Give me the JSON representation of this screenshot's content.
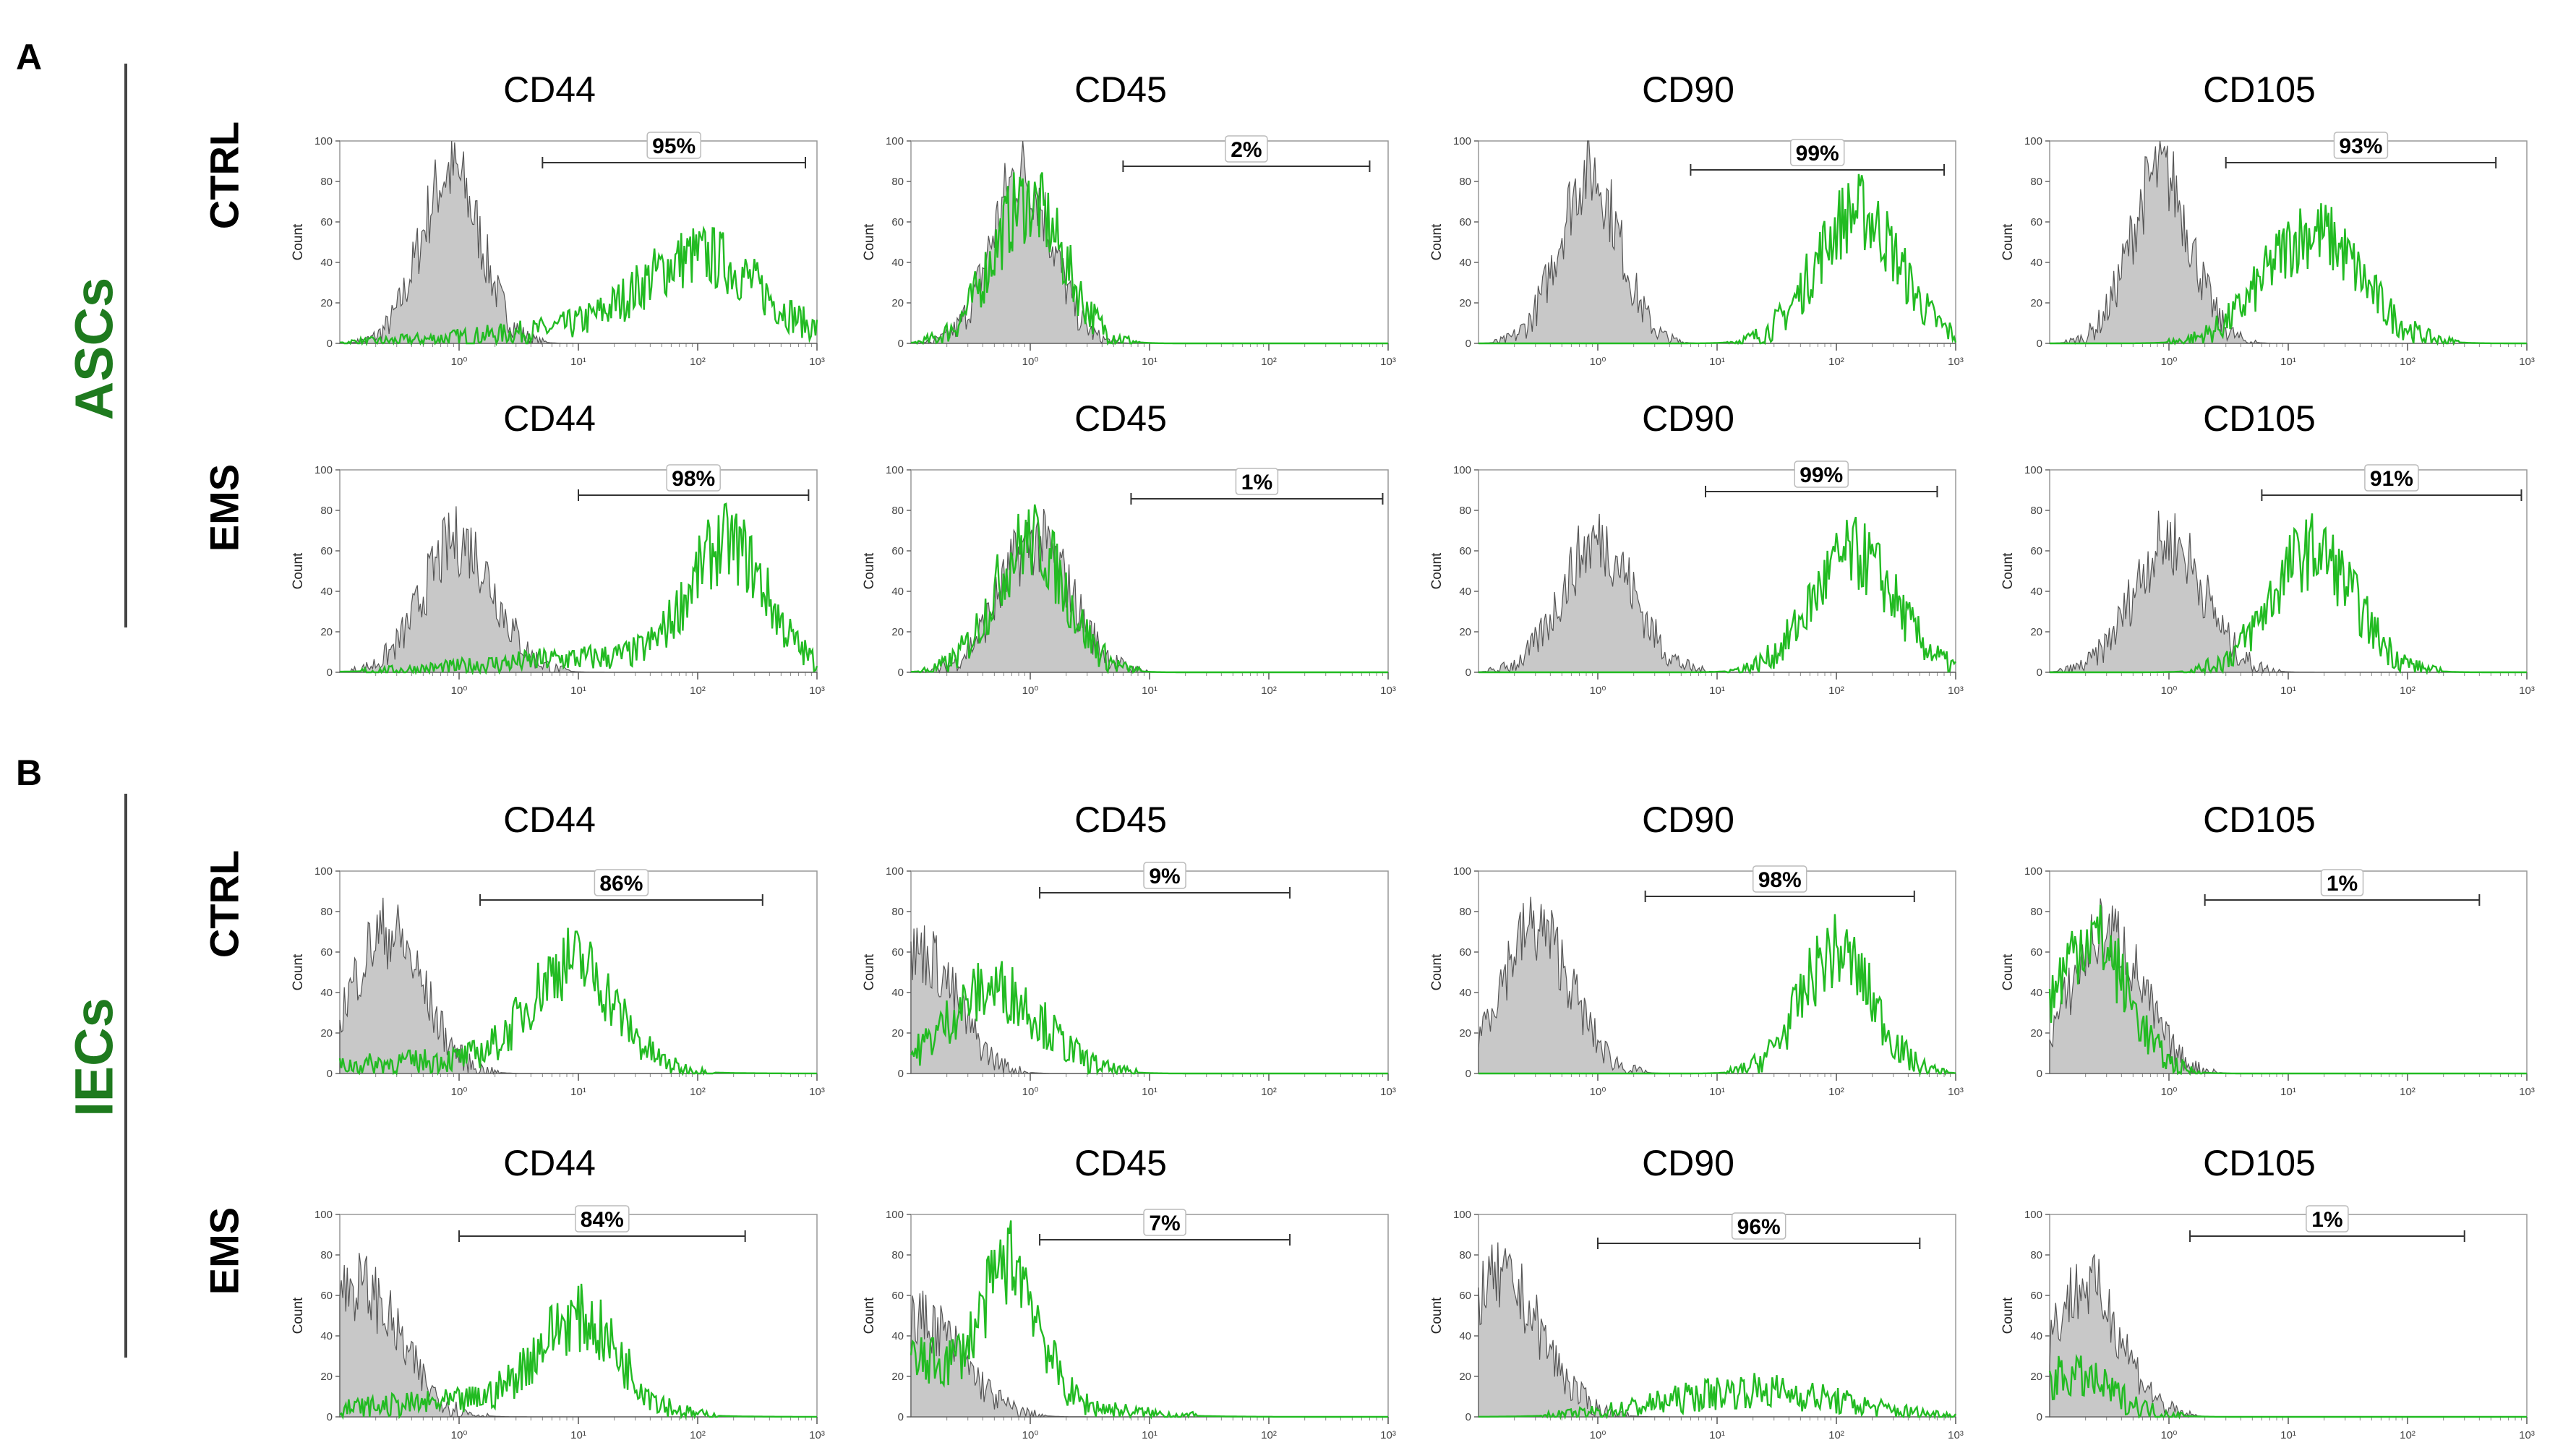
{
  "figure": {
    "panel_letters": [
      "A",
      "B"
    ],
    "groups": [
      {
        "label": "ASCs",
        "color": "#1e7a1e"
      },
      {
        "label": "IECs",
        "color": "#1e7a1e"
      }
    ],
    "row_labels": [
      "CTRL",
      "EMS",
      "CTRL",
      "EMS"
    ],
    "colors": {
      "isotype_fill": "#c8c8c8",
      "isotype_line": "#555555",
      "marker_line": "#22bb22",
      "axis": "#999999"
    }
  },
  "chart_data": {
    "type": "histogram-grid",
    "xscale": "log",
    "xlim": [
      0.1,
      1000
    ],
    "ylim": [
      0,
      100
    ],
    "yticks": [
      "0",
      "20",
      "40",
      "60",
      "80",
      "100"
    ],
    "xticks": [
      "10⁰",
      "10¹",
      "10²",
      "10³"
    ],
    "ylabel": "Count",
    "series_legend": [
      "isotype control (grey filled)",
      "marker (green line)"
    ],
    "panels": [
      {
        "group": "ASCs",
        "row": "CTRL",
        "marker": "CD44",
        "pct": "95%",
        "gate": [
          5,
          800
        ],
        "iso": {
          "peak": 0.85,
          "width": 0.25,
          "height": 85
        },
        "stain": {
          "peak": 110,
          "width": 0.5,
          "height": 40,
          "tail": 0.1
        }
      },
      {
        "group": "ASCs",
        "row": "CTRL",
        "marker": "CD45",
        "pct": "2%",
        "gate": [
          6,
          700
        ],
        "iso": {
          "peak": 0.85,
          "width": 0.25,
          "height": 85
        },
        "stain": {
          "peak": 0.95,
          "width": 0.3,
          "height": 70,
          "tail": 0
        }
      },
      {
        "group": "ASCs",
        "row": "CTRL",
        "marker": "CD90",
        "pct": "99%",
        "gate": [
          6,
          800
        ],
        "iso": {
          "peak": 0.85,
          "width": 0.25,
          "height": 85
        },
        "stain": {
          "peak": 150,
          "width": 0.35,
          "height": 65,
          "tail": 0
        }
      },
      {
        "group": "ASCs",
        "row": "CTRL",
        "marker": "CD105",
        "pct": "93%",
        "gate": [
          3,
          550
        ],
        "iso": {
          "peak": 0.85,
          "width": 0.25,
          "height": 85
        },
        "stain": {
          "peak": 16,
          "width": 0.4,
          "height": 55,
          "tail": 0
        }
      },
      {
        "group": "ASCs",
        "row": "EMS",
        "marker": "CD44",
        "pct": "98%",
        "gate": [
          10,
          850
        ],
        "iso": {
          "peak": 1.0,
          "width": 0.3,
          "height": 65
        },
        "stain": {
          "peak": 180,
          "width": 0.32,
          "height": 60,
          "tail": 0.08
        }
      },
      {
        "group": "ASCs",
        "row": "EMS",
        "marker": "CD45",
        "pct": "1%",
        "gate": [
          7,
          900
        ],
        "iso": {
          "peak": 1.1,
          "width": 0.3,
          "height": 65
        },
        "stain": {
          "peak": 1.0,
          "width": 0.3,
          "height": 65,
          "tail": 0
        }
      },
      {
        "group": "ASCs",
        "row": "EMS",
        "marker": "CD90",
        "pct": "99%",
        "gate": [
          8,
          700
        ],
        "iso": {
          "peak": 1.0,
          "width": 0.3,
          "height": 65
        },
        "stain": {
          "peak": 140,
          "width": 0.35,
          "height": 58,
          "tail": 0
        }
      },
      {
        "group": "ASCs",
        "row": "EMS",
        "marker": "CD105",
        "pct": "91%",
        "gate": [
          6,
          900
        ],
        "iso": {
          "peak": 1.0,
          "width": 0.3,
          "height": 65
        },
        "stain": {
          "peak": 16,
          "width": 0.35,
          "height": 60,
          "tail": 0
        }
      },
      {
        "group": "IECs",
        "row": "CTRL",
        "marker": "CD44",
        "pct": "86%",
        "gate": [
          1.5,
          350
        ],
        "iso": {
          "peak": 0.25,
          "width": 0.3,
          "height": 70
        },
        "stain": {
          "peak": 9,
          "width": 0.35,
          "height": 52,
          "tail": 0.08
        }
      },
      {
        "group": "IECs",
        "row": "CTRL",
        "marker": "CD45",
        "pct": "9%",
        "gate": [
          1.2,
          150
        ],
        "iso": {
          "peak": 0.12,
          "width": 0.3,
          "height": 60
        },
        "stain": {
          "peak": 0.5,
          "width": 0.4,
          "height": 42,
          "tail": 0
        }
      },
      {
        "group": "IECs",
        "row": "CTRL",
        "marker": "CD90",
        "pct": "98%",
        "gate": [
          2.5,
          450
        ],
        "iso": {
          "peak": 0.3,
          "width": 0.3,
          "height": 72
        },
        "stain": {
          "peak": 100,
          "width": 0.3,
          "height": 60,
          "tail": 0
        }
      },
      {
        "group": "IECs",
        "row": "CTRL",
        "marker": "CD105",
        "pct": "1%",
        "gate": [
          2,
          400
        ],
        "iso": {
          "peak": 0.3,
          "width": 0.3,
          "height": 70
        },
        "stain": {
          "peak": 0.22,
          "width": 0.3,
          "height": 68,
          "tail": 0
        }
      },
      {
        "group": "IECs",
        "row": "EMS",
        "marker": "CD44",
        "pct": "84%",
        "gate": [
          1,
          250
        ],
        "iso": {
          "peak": 0.14,
          "width": 0.35,
          "height": 65
        },
        "stain": {
          "peak": 10,
          "width": 0.35,
          "height": 45,
          "tail": 0.1
        }
      },
      {
        "group": "IECs",
        "row": "EMS",
        "marker": "CD45",
        "pct": "7%",
        "gate": [
          1.2,
          150
        ],
        "iso": {
          "peak": 0.12,
          "width": 0.35,
          "height": 48
        },
        "stain": {
          "peak": 0.7,
          "width": 0.22,
          "height": 62,
          "tail": 0.3
        }
      },
      {
        "group": "IECs",
        "row": "EMS",
        "marker": "CD90",
        "pct": "96%",
        "gate": [
          1,
          500
        ],
        "iso": {
          "peak": 0.15,
          "width": 0.35,
          "height": 68
        },
        "stain": {
          "peak": 20,
          "width": 0.7,
          "height": 13,
          "tail": 0
        }
      },
      {
        "group": "IECs",
        "row": "EMS",
        "marker": "CD105",
        "pct": "1%",
        "gate": [
          1.5,
          300
        ],
        "iso": {
          "peak": 0.2,
          "width": 0.3,
          "height": 65
        },
        "stain": {
          "peak": 0.15,
          "width": 0.35,
          "height": 20,
          "tail": 0
        }
      }
    ]
  }
}
